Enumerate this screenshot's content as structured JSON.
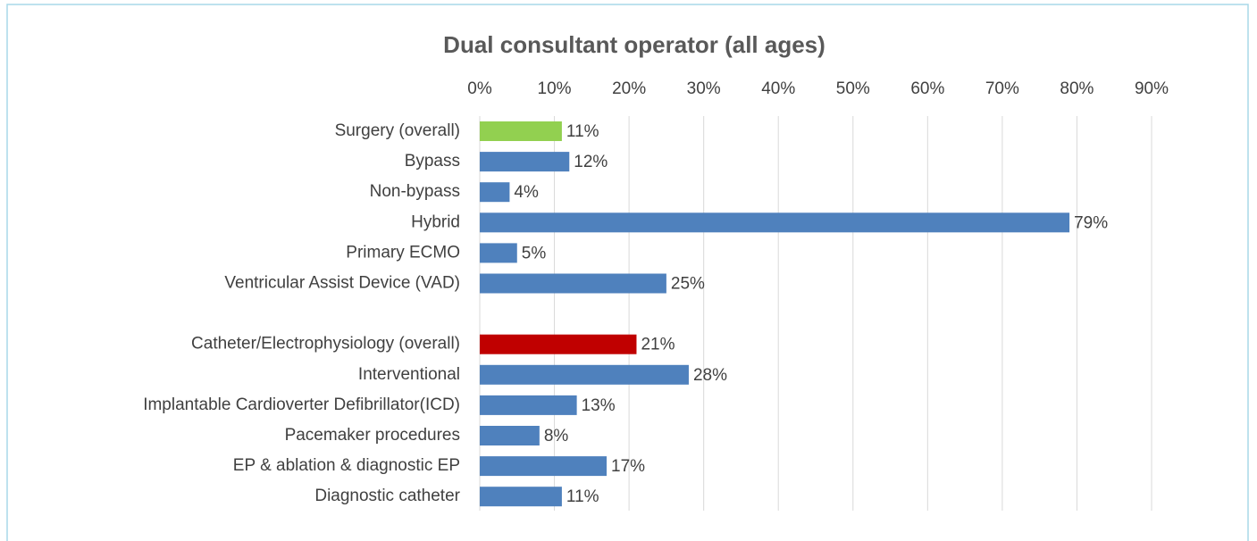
{
  "chart_data": {
    "type": "hbar",
    "title": "Dual consultant operator (all ages)",
    "categories": [
      "Surgery (overall)",
      "Bypass",
      "Non-bypass",
      "Hybrid",
      "Primary ECMO",
      "Ventricular Assist Device (VAD)",
      null,
      "Catheter/Electrophysiology (overall)",
      "Interventional",
      "Implantable Cardioverter Defibrillator(ICD)",
      "Pacemaker procedures",
      "EP & ablation & diagnostic EP",
      "Diagnostic catheter"
    ],
    "values": [
      11,
      12,
      4,
      79,
      5,
      25,
      null,
      21,
      28,
      13,
      8,
      17,
      11
    ],
    "value_labels": [
      "11%",
      "12%",
      "4%",
      "79%",
      "5%",
      "25%",
      null,
      "21%",
      "28%",
      "13%",
      "8%",
      "17%",
      "11%"
    ],
    "colors": [
      "#92d050",
      "#4f81bd",
      "#4f81bd",
      "#4f81bd",
      "#4f81bd",
      "#4f81bd",
      null,
      "#c00000",
      "#4f81bd",
      "#4f81bd",
      "#4f81bd",
      "#4f81bd",
      "#4f81bd"
    ],
    "xlim": [
      0,
      90
    ],
    "xticks": [
      {
        "value": 0,
        "label": "0%"
      },
      {
        "value": 10,
        "label": "10%"
      },
      {
        "value": 20,
        "label": "20%"
      },
      {
        "value": 30,
        "label": "30%"
      },
      {
        "value": 40,
        "label": "40%"
      },
      {
        "value": 50,
        "label": "50%"
      },
      {
        "value": 60,
        "label": "60%"
      },
      {
        "value": 70,
        "label": "70%"
      },
      {
        "value": 80,
        "label": "80%"
      },
      {
        "value": 90,
        "label": "90%"
      }
    ],
    "grid": true
  }
}
